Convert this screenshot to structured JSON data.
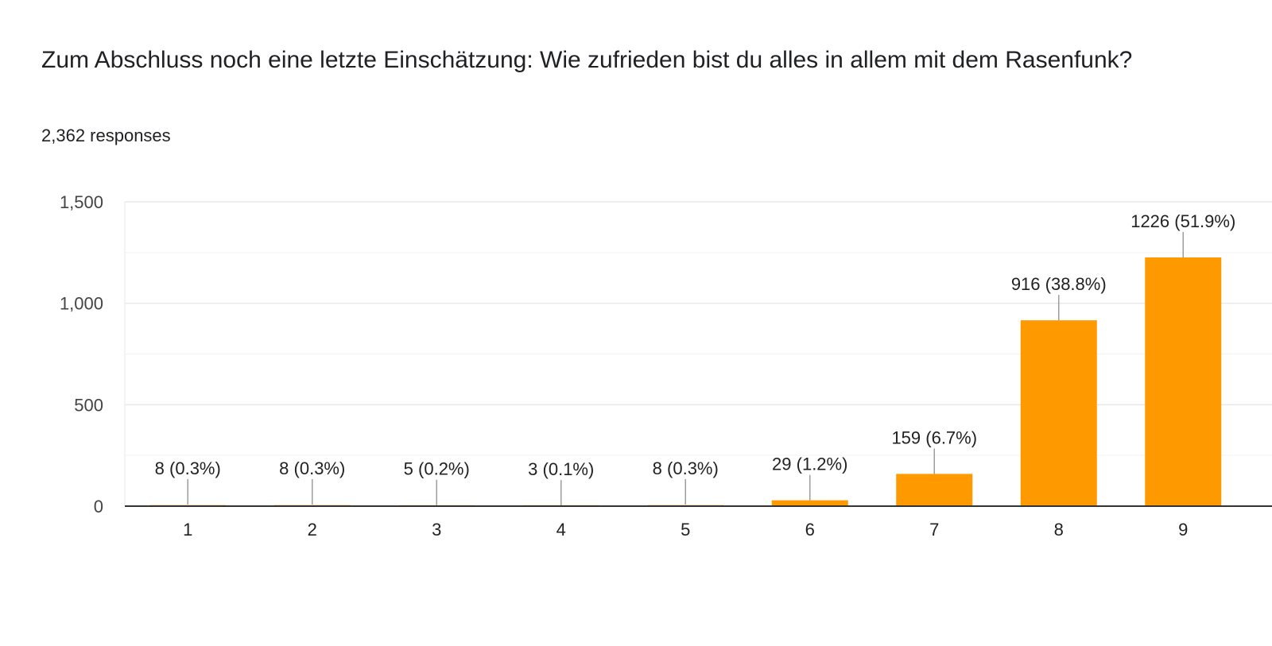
{
  "header": {
    "question": "Zum Abschluss noch eine letzte Einschätzung: Wie zufrieden bist du alles in allem mit dem Rasenfunk?",
    "responses": "2,362 responses"
  },
  "colors": {
    "bar": "#ff9900",
    "grid": "#e8e8e8",
    "minor_grid": "#f3f3f3",
    "axis": "#333333",
    "leader": "#9e9e9e"
  },
  "chart_data": {
    "type": "bar",
    "categories": [
      "1",
      "2",
      "3",
      "4",
      "5",
      "6",
      "7",
      "8",
      "9"
    ],
    "values": [
      8,
      8,
      5,
      3,
      8,
      29,
      159,
      916,
      1226
    ],
    "data_labels": [
      "8 (0.3%)",
      "8 (0.3%)",
      "5 (0.2%)",
      "3 (0.1%)",
      "8 (0.3%)",
      "29 (1.2%)",
      "159 (6.7%)",
      "916 (38.8%)",
      "1226 (51.9%)"
    ],
    "yticks": [
      0,
      500,
      1000,
      1500
    ],
    "ytick_labels": [
      "0",
      "500",
      "1,000",
      "1,500"
    ],
    "ylim": [
      0,
      1500
    ],
    "grid": true,
    "legend": "none"
  }
}
